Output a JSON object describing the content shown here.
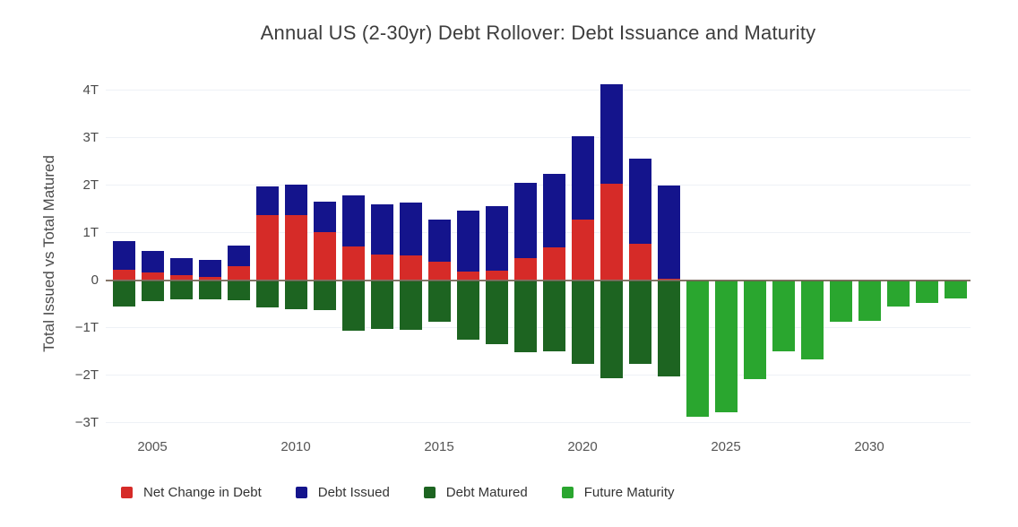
{
  "title": "Annual US (2-30yr) Debt Rollover: Debt Issuance and Maturity",
  "y_axis": {
    "label": "Total Issued vs Total Matured",
    "tick_labels": [
      "4T",
      "3T",
      "2T",
      "1T",
      "0",
      "−1T",
      "−2T",
      "−3T"
    ],
    "tick_values": [
      4,
      3,
      2,
      1,
      0,
      -1,
      -2,
      -3
    ]
  },
  "x_axis": {
    "tick_labels": [
      "2005",
      "2010",
      "2015",
      "2020",
      "2025",
      "2030"
    ],
    "tick_values": [
      2005,
      2010,
      2015,
      2020,
      2025,
      2030
    ]
  },
  "legend": {
    "items": [
      {
        "label": "Net Change in Debt",
        "color": "#d62b28"
      },
      {
        "label": "Debt Issued",
        "color": "#14148c"
      },
      {
        "label": "Debt Matured",
        "color": "#1d6421"
      },
      {
        "label": "Future Maturity",
        "color": "#2aa62f"
      }
    ]
  },
  "colors": {
    "net_change": "#d62b28",
    "debt_issued": "#14148c",
    "debt_matured": "#1d6421",
    "future_maturity": "#2aa62f",
    "zero_line": "#6f5d4e",
    "gridline": "#eef1f6",
    "title_text": "#3d3d3d",
    "axis_text": "#4a4a4a"
  },
  "chart_data": {
    "type": "bar",
    "title": "Annual US (2-30yr) Debt Rollover: Debt Issuance and Maturity",
    "xlabel": "",
    "ylabel": "Total Issued vs Total Matured",
    "unit": "T = trillion USD",
    "ylim": [
      -3.12,
      4.31
    ],
    "grid": "faint horizontal gridlines every 1T; dark zero line drawn over bars",
    "legend_position": "bottom",
    "structure": "Above zero: red = net change in debt (0 to net), dark blue = debt issued stacked from net up to total issued. Below zero: dark green = debt matured (historical), bright green = future maturity (projected, 2024-2033).",
    "categories": [
      2004,
      2005,
      2006,
      2007,
      2008,
      2009,
      2010,
      2011,
      2012,
      2013,
      2014,
      2015,
      2016,
      2017,
      2018,
      2019,
      2020,
      2021,
      2022,
      2023,
      2024,
      2025,
      2026,
      2027,
      2028,
      2029,
      2030,
      2031,
      2032,
      2033
    ],
    "series": [
      {
        "name": "Net Change in Debt",
        "color": "#d62b28",
        "values": [
          0.22,
          0.16,
          0.1,
          0.07,
          0.29,
          1.37,
          1.36,
          1.01,
          0.7,
          0.53,
          0.51,
          0.39,
          0.17,
          0.19,
          0.47,
          0.69,
          1.27,
          2.03,
          0.77,
          0.02,
          null,
          null,
          null,
          null,
          null,
          null,
          null,
          null,
          null,
          null
        ]
      },
      {
        "name": "Debt Issued",
        "color": "#14148c",
        "values": [
          0.82,
          0.61,
          0.47,
          0.42,
          0.73,
          1.97,
          2.01,
          1.66,
          1.78,
          1.6,
          1.63,
          1.28,
          1.46,
          1.55,
          2.04,
          2.23,
          3.02,
          4.12,
          2.55,
          2.0,
          null,
          null,
          null,
          null,
          null,
          null,
          null,
          null,
          null,
          null
        ]
      },
      {
        "name": "Debt Matured",
        "color": "#1d6421",
        "values": [
          -0.56,
          -0.45,
          -0.41,
          -0.4,
          -0.42,
          -0.58,
          -0.62,
          -0.64,
          -1.07,
          -1.03,
          -1.05,
          -0.88,
          -1.26,
          -1.34,
          -1.52,
          -1.5,
          -1.76,
          -2.06,
          -1.77,
          -2.02,
          null,
          null,
          null,
          null,
          null,
          null,
          null,
          null,
          null,
          null
        ]
      },
      {
        "name": "Future Maturity",
        "color": "#2aa62f",
        "values": [
          null,
          null,
          null,
          null,
          null,
          null,
          null,
          null,
          null,
          null,
          null,
          null,
          null,
          null,
          null,
          null,
          null,
          null,
          null,
          null,
          -2.88,
          -2.79,
          -2.09,
          -1.5,
          -1.67,
          -0.88,
          -0.85,
          -0.55,
          -0.49,
          -0.38
        ]
      }
    ]
  }
}
